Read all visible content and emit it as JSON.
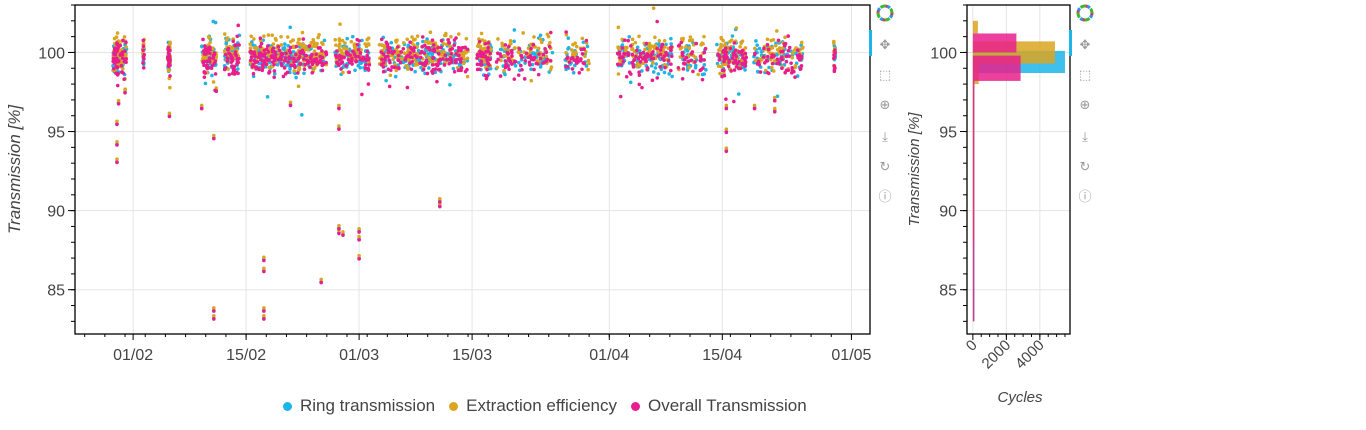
{
  "chart_data": [
    {
      "type": "scatter",
      "title": "",
      "ylabel": "Transmission [%]",
      "xlabel": "",
      "ylim": [
        82.2,
        103.0
      ],
      "xlim_day_of_year": [
        24.8,
        123.3
      ],
      "x_ticks": [
        {
          "label": "01/02",
          "day": 32
        },
        {
          "label": "15/02",
          "day": 46
        },
        {
          "label": "01/03",
          "day": 60
        },
        {
          "label": "15/03",
          "day": 74
        },
        {
          "label": "01/04",
          "day": 91
        },
        {
          "label": "15/04",
          "day": 105
        },
        {
          "label": "01/05",
          "day": 121
        }
      ],
      "y_ticks": [
        85,
        90,
        95,
        100
      ],
      "grid": true,
      "series": [
        {
          "name": "Ring transmission",
          "color": "#1db4e8",
          "offset": 0.0
        },
        {
          "name": "Extraction efficiency",
          "color": "#daa520",
          "offset": 0.3
        },
        {
          "name": "Overall Transmission",
          "color": "#e91e8c",
          "offset": -0.1
        }
      ],
      "cluster_day_ranges": [
        [
          29.5,
          31.2,
          60
        ],
        [
          33.2,
          33.4,
          8
        ],
        [
          36.3,
          36.6,
          25
        ],
        [
          40.5,
          42.3,
          40
        ],
        [
          43.3,
          45.2,
          40
        ],
        [
          46.5,
          56,
          160
        ],
        [
          57,
          61.3,
          60
        ],
        [
          62.5,
          73.5,
          140
        ],
        [
          74.6,
          76.4,
          40
        ],
        [
          77,
          84,
          60
        ],
        [
          85.5,
          88.5,
          25
        ],
        [
          92,
          98.8,
          80
        ],
        [
          99.5,
          103,
          30
        ],
        [
          104.3,
          108,
          60
        ],
        [
          108.9,
          115,
          60
        ],
        [
          118.8,
          119,
          10
        ]
      ],
      "outliers": [
        [
          30,
          93.1
        ],
        [
          30,
          94.2
        ],
        [
          30,
          95.5
        ],
        [
          30.2,
          96.8
        ],
        [
          31,
          97.5
        ],
        [
          36.5,
          96.0
        ],
        [
          40.5,
          96.5
        ],
        [
          42,
          94.6
        ],
        [
          42,
          83.2
        ],
        [
          42,
          83.7
        ],
        [
          42.3,
          97.6
        ],
        [
          48.2,
          86.9
        ],
        [
          48.2,
          86.2
        ],
        [
          48.2,
          83.2
        ],
        [
          48.2,
          83.7
        ],
        [
          51.5,
          96.7
        ],
        [
          55.3,
          85.5
        ],
        [
          57.5,
          88.6
        ],
        [
          57.5,
          88.9
        ],
        [
          57.5,
          95.2
        ],
        [
          57.5,
          96.5
        ],
        [
          58,
          88.5
        ],
        [
          60,
          87.0
        ],
        [
          60,
          88.2
        ],
        [
          60,
          88.7
        ],
        [
          70,
          90.3
        ],
        [
          70,
          90.6
        ],
        [
          105.5,
          93.8
        ],
        [
          105.5,
          95.0
        ],
        [
          105.5,
          96.5
        ],
        [
          109,
          96.5
        ],
        [
          111.5,
          96.3
        ],
        [
          111.5,
          97.0
        ]
      ]
    },
    {
      "type": "bar",
      "orientation": "horizontal",
      "xlabel": "Cycles",
      "ylabel": "Transmission [%]",
      "x_ticks": [
        0,
        2000,
        4000
      ],
      "xlim": [
        -350,
        5800
      ],
      "ylim": [
        82.2,
        103.0
      ],
      "series": [
        {
          "name": "Ring transmission",
          "color": "#1db4e8",
          "bins": [
            [
              98.7,
              100.1,
              5500
            ],
            [
              97.2,
              98.7,
              40
            ],
            [
              83,
              97.2,
              15
            ]
          ]
        },
        {
          "name": "Extraction efficiency",
          "color": "#daa520",
          "bins": [
            [
              101.2,
              102.0,
              300
            ],
            [
              99.3,
              100.7,
              4900
            ],
            [
              98.0,
              99.3,
              350
            ],
            [
              88,
              98,
              30
            ]
          ]
        },
        {
          "name": "Overall Transmission",
          "color": "#e91e8c",
          "bins": [
            [
              100.0,
              101.2,
              2600
            ],
            [
              98.2,
              99.8,
              2850
            ],
            [
              95,
              98.2,
              60
            ],
            [
              83,
              95,
              20
            ]
          ]
        }
      ]
    }
  ],
  "legend": [
    "Ring transmission",
    "Extraction efficiency",
    "Overall Transmission"
  ],
  "toolbar": [
    "logo",
    "pan",
    "box-zoom",
    "wheel-zoom",
    "save",
    "reset",
    "help"
  ]
}
